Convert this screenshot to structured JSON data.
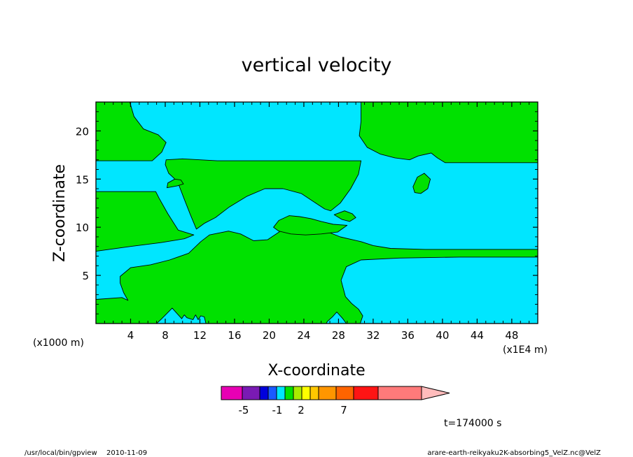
{
  "chart_data": {
    "type": "heatmap",
    "title": "vertical velocity",
    "xlabel": "X-coordinate",
    "ylabel": "Z-coordinate",
    "x_unit": "(x1E4 m)",
    "y_unit": "(x1000 m)",
    "xlim": [
      0,
      51
    ],
    "ylim": [
      0,
      23
    ],
    "x_ticks": [
      4,
      8,
      12,
      16,
      20,
      24,
      28,
      32,
      36,
      40,
      44,
      48
    ],
    "y_ticks": [
      5,
      10,
      15,
      20
    ],
    "grid": false,
    "colorbar": {
      "colors": [
        "#e800b4",
        "#7a1ab4",
        "#0000dc",
        "#1a5aff",
        "#00e6ff",
        "#00e100",
        "#aaeb00",
        "#ffff00",
        "#ffc800",
        "#ff9600",
        "#ff6400",
        "#ff1414",
        "#ff7a7a",
        "#ffbcbc"
      ],
      "tick_labels": [
        {
          "value": -5,
          "label": "-5"
        },
        {
          "value": -1,
          "label": "-1"
        },
        {
          "value": 2,
          "label": "2"
        },
        {
          "value": 7,
          "label": "7"
        }
      ]
    },
    "fields": {
      "background": {
        "color": "#00e6ff"
      },
      "regions": [
        {
          "color": "#00e100",
          "points": [
            [
              0,
              23
            ],
            [
              3.9,
              23
            ],
            [
              4.4,
              21.5
            ],
            [
              5.5,
              20.2
            ],
            [
              7.2,
              19.6
            ],
            [
              8.1,
              18.8
            ],
            [
              7.6,
              17.8
            ],
            [
              6.5,
              16.9
            ],
            [
              0,
              16.9
            ]
          ]
        },
        {
          "color": "#00e100",
          "points": [
            [
              30.6,
              23
            ],
            [
              51,
              23
            ],
            [
              51,
              16.7
            ],
            [
              40.3,
              16.7
            ],
            [
              39.4,
              17.2
            ],
            [
              38.7,
              17.7
            ],
            [
              37.2,
              17.4
            ],
            [
              36.2,
              17.0
            ],
            [
              34.5,
              17.2
            ],
            [
              32.8,
              17.6
            ],
            [
              31.3,
              18.3
            ],
            [
              30.4,
              19.5
            ],
            [
              30.6,
              21.0
            ]
          ]
        },
        {
          "color": "#00e100",
          "points": [
            [
              0,
              13.7
            ],
            [
              6.9,
              13.7
            ],
            [
              7.3,
              13.0
            ],
            [
              7.8,
              12.2
            ],
            [
              8.3,
              11.4
            ],
            [
              9.5,
              9.7
            ],
            [
              11.3,
              9.2
            ],
            [
              10.2,
              8.8
            ],
            [
              7.5,
              8.4
            ],
            [
              4.0,
              8.0
            ],
            [
              0,
              7.5
            ]
          ]
        },
        {
          "color": "#00e100",
          "points": [
            [
              8.0,
              16.5
            ],
            [
              8.1,
              17.0
            ],
            [
              10.0,
              17.1
            ],
            [
              14,
              16.9
            ],
            [
              20,
              16.9
            ],
            [
              26,
              16.9
            ],
            [
              30.6,
              16.9
            ],
            [
              30.3,
              15.5
            ],
            [
              29.4,
              14.0
            ],
            [
              28.2,
              12.5
            ],
            [
              27.1,
              11.7
            ],
            [
              26.4,
              11.9
            ],
            [
              25.2,
              12.6
            ],
            [
              23.7,
              13.5
            ],
            [
              21.6,
              14.0
            ],
            [
              19.5,
              14.0
            ],
            [
              17.4,
              13.2
            ],
            [
              15.4,
              12.1
            ],
            [
              13.8,
              11.0
            ],
            [
              12.5,
              10.4
            ],
            [
              11.6,
              9.8
            ],
            [
              10.9,
              11.3
            ],
            [
              10.2,
              12.9
            ],
            [
              9.6,
              14.3
            ],
            [
              9.0,
              15.1
            ],
            [
              8.4,
              15.6
            ]
          ]
        },
        {
          "color": "#00e100",
          "points": [
            [
              8.2,
              14.1
            ],
            [
              9.4,
              14.3
            ],
            [
              10.1,
              14.5
            ],
            [
              9.8,
              14.9
            ],
            [
              9.1,
              15.0
            ],
            [
              8.3,
              14.6
            ]
          ]
        },
        {
          "color": "#00e100",
          "points": [
            [
              36.6,
              14.2
            ],
            [
              37.1,
              15.2
            ],
            [
              37.9,
              15.6
            ],
            [
              38.6,
              15.0
            ],
            [
              38.3,
              14.0
            ],
            [
              37.5,
              13.5
            ],
            [
              36.8,
              13.6
            ]
          ]
        },
        {
          "color": "#00e100",
          "points": [
            [
              0,
              0
            ],
            [
              0,
              2.5
            ],
            [
              3.0,
              2.7
            ],
            [
              3.7,
              2.4
            ],
            [
              3.2,
              3.2
            ],
            [
              2.8,
              4.2
            ],
            [
              2.8,
              4.9
            ],
            [
              4.0,
              5.8
            ],
            [
              6.3,
              6.1
            ],
            [
              8.5,
              6.6
            ],
            [
              10.7,
              7.3
            ],
            [
              12.1,
              8.5
            ],
            [
              13.1,
              9.2
            ],
            [
              15.3,
              9.6
            ],
            [
              16.7,
              9.3
            ],
            [
              18.2,
              8.6
            ],
            [
              19.8,
              8.7
            ],
            [
              21.3,
              9.6
            ],
            [
              22.4,
              9.8
            ],
            [
              23.4,
              9.9
            ],
            [
              25.6,
              10.3
            ],
            [
              26.8,
              9.5
            ],
            [
              28.2,
              9.0
            ],
            [
              30.6,
              8.5
            ],
            [
              32.0,
              8.1
            ],
            [
              34.0,
              7.8
            ],
            [
              38.0,
              7.7
            ],
            [
              42,
              7.7
            ],
            [
              46,
              7.7
            ],
            [
              51,
              7.7
            ],
            [
              51,
              6.9
            ],
            [
              42,
              6.9
            ],
            [
              35,
              6.8
            ],
            [
              30.6,
              6.6
            ],
            [
              28.9,
              5.9
            ],
            [
              28.3,
              4.5
            ],
            [
              28.8,
              2.8
            ],
            [
              29.5,
              2.1
            ],
            [
              30.3,
              1.5
            ],
            [
              30.8,
              0.8
            ],
            [
              30.5,
              0
            ],
            [
              28.9,
              0
            ],
            [
              28.5,
              0.5
            ],
            [
              27.8,
              1.2
            ],
            [
              27.3,
              0.7
            ],
            [
              26.7,
              0.2
            ],
            [
              26.6,
              0
            ],
            [
              12.7,
              0
            ],
            [
              12.5,
              0.7
            ],
            [
              12.1,
              0.8
            ],
            [
              11.8,
              0.4
            ],
            [
              11.5,
              0.9
            ],
            [
              11.2,
              0.4
            ],
            [
              10.5,
              0.6
            ],
            [
              10.2,
              0.9
            ],
            [
              9.9,
              0.5
            ],
            [
              9.4,
              1.0
            ],
            [
              8.8,
              1.6
            ],
            [
              7.6,
              0.5
            ],
            [
              7.0,
              0
            ]
          ]
        },
        {
          "color": "#00e100",
          "points": [
            [
              20.5,
              10.0
            ],
            [
              21.1,
              10.7
            ],
            [
              22.3,
              11.2
            ],
            [
              23.5,
              11.1
            ],
            [
              24.8,
              10.9
            ],
            [
              26.0,
              10.6
            ],
            [
              27.4,
              10.3
            ],
            [
              29.0,
              10.2
            ],
            [
              27.9,
              9.5
            ],
            [
              26.0,
              9.3
            ],
            [
              24.2,
              9.2
            ],
            [
              22.5,
              9.3
            ],
            [
              21.1,
              9.6
            ]
          ]
        },
        {
          "color": "#00e100",
          "points": [
            [
              27.5,
              11.3
            ],
            [
              28.7,
              11.7
            ],
            [
              29.6,
              11.4
            ],
            [
              30.0,
              11.0
            ],
            [
              29.3,
              10.6
            ],
            [
              28.4,
              10.8
            ]
          ]
        }
      ]
    }
  },
  "footer": {
    "time_label": "t=174000 s",
    "program": "/usr/local/bin/gpview",
    "date": "2010-11-09",
    "source": "arare-earth-reikyaku2K-absorbing5_VelZ.nc@VelZ"
  }
}
